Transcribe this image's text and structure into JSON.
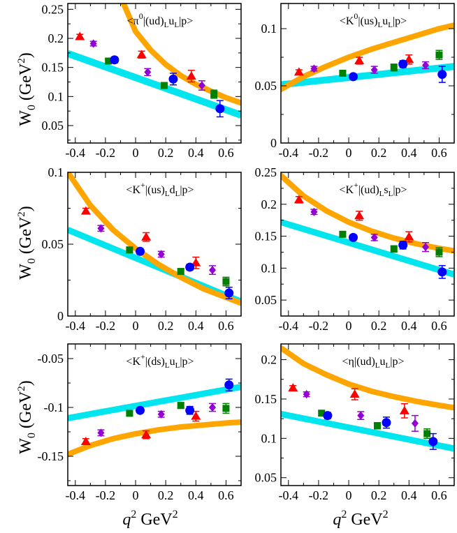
{
  "figure": {
    "ylabel_main": "W",
    "ylabel_sub": "0",
    "ylabel_unit": " (GeV",
    "ylabel_unit_sup": "2",
    "ylabel_close": ")",
    "xlabel_main": "q",
    "xlabel_sup": "2",
    "xlabel_unit": " GeV",
    "xlabel_unit_sup": "2"
  },
  "colors": {
    "triangle": "#ff0000",
    "diamond": "#9400d3",
    "square": "#008000",
    "circle": "#0000ff",
    "curve_orange": "#ffa500",
    "band_cyan": "#00e5ee"
  },
  "chart_data": [
    {
      "type": "scatter",
      "title": "<π⁰|(ud)LuL|p>",
      "title_parts": [
        "<π",
        "0",
        "|(ud)",
        "L",
        "u",
        "L",
        "|p>"
      ],
      "xlim": [
        -0.45,
        0.7
      ],
      "ylim": [
        0.02,
        0.26
      ],
      "xticks": [
        -0.4,
        -0.2,
        0,
        0.2,
        0.4,
        0.6
      ],
      "xtick_labels": [
        "-0.4",
        "-0.2",
        "0",
        "0.2",
        "0.4",
        "0.6"
      ],
      "yticks": [
        0.05,
        0.1,
        0.15,
        0.2,
        0.25
      ],
      "ytick_labels": [
        "0.05",
        "0.1",
        "0.15",
        "0.2",
        "0.25"
      ],
      "series": [
        {
          "name": "triangle",
          "marker": "triangle",
          "x": [
            -0.37,
            0.04,
            0.37
          ],
          "y": [
            0.203,
            0.172,
            0.135
          ],
          "err": [
            0.004,
            0.006,
            0.01
          ]
        },
        {
          "name": "diamond",
          "marker": "diamond",
          "x": [
            -0.28,
            0.08,
            0.44
          ],
          "y": [
            0.191,
            0.142,
            0.119
          ],
          "err": [
            0.004,
            0.006,
            0.008
          ]
        },
        {
          "name": "square",
          "marker": "square",
          "x": [
            -0.18,
            0.19,
            0.52
          ],
          "y": [
            0.161,
            0.119,
            0.104
          ],
          "err": [
            0.004,
            0.005,
            0.007
          ]
        },
        {
          "name": "circle",
          "marker": "circle",
          "x": [
            -0.14,
            0.25,
            0.56
          ],
          "y": [
            0.163,
            0.13,
            0.079
          ],
          "err": [
            0.005,
            0.01,
            0.014
          ]
        }
      ],
      "orange": {
        "x": [
          -0.08,
          0.0,
          0.1,
          0.2,
          0.3,
          0.4,
          0.5,
          0.6,
          0.7
        ],
        "y": [
          0.26,
          0.212,
          0.18,
          0.155,
          0.136,
          0.121,
          0.109,
          0.098,
          0.089
        ]
      },
      "cyan": {
        "x": [
          -0.45,
          0.7
        ],
        "y": [
          0.174,
          0.068
        ],
        "width": 0.012
      }
    },
    {
      "type": "scatter",
      "title": "<K⁰|(us)LuL|p>",
      "title_parts": [
        "<K",
        "0",
        "|(us)",
        "L",
        "u",
        "L",
        "|p>"
      ],
      "xlim": [
        -0.45,
        0.7
      ],
      "ylim": [
        0,
        0.122
      ],
      "xticks": [
        -0.4,
        -0.2,
        0,
        0.2,
        0.4,
        0.6
      ],
      "xtick_labels": [
        "-0.4",
        "-0.2",
        "0",
        "0.2",
        "0.4",
        "0.6"
      ],
      "yticks": [
        0,
        0.05,
        0.1
      ],
      "ytick_labels": [
        "0",
        "0.05",
        "0.1"
      ],
      "series": [
        {
          "name": "triangle",
          "marker": "triangle",
          "x": [
            -0.33,
            0.07,
            0.4
          ],
          "y": [
            0.062,
            0.072,
            0.073
          ],
          "err": [
            0.002,
            0.003,
            0.004
          ]
        },
        {
          "name": "diamond",
          "marker": "diamond",
          "x": [
            -0.23,
            0.17,
            0.51
          ],
          "y": [
            0.065,
            0.064,
            0.068
          ],
          "err": [
            0.002,
            0.003,
            0.003
          ]
        },
        {
          "name": "square",
          "marker": "square",
          "x": [
            -0.04,
            0.3,
            0.6
          ],
          "y": [
            0.061,
            0.066,
            0.077
          ],
          "err": [
            0.002,
            0.003,
            0.004
          ]
        },
        {
          "name": "circle",
          "marker": "circle",
          "x": [
            0.03,
            0.36,
            0.62
          ],
          "y": [
            0.058,
            0.069,
            0.06
          ],
          "err": [
            0.002,
            0.003,
            0.007
          ]
        }
      ],
      "orange": {
        "x": [
          -0.45,
          -0.3,
          -0.15,
          0.0,
          0.15,
          0.3,
          0.45,
          0.6,
          0.7
        ],
        "y": [
          0.047,
          0.058,
          0.067,
          0.075,
          0.082,
          0.088,
          0.094,
          0.1,
          0.103
        ]
      },
      "cyan": {
        "x": [
          -0.45,
          0.7
        ],
        "y": [
          0.051,
          0.067
        ],
        "width": 0.006
      }
    },
    {
      "type": "scatter",
      "title": "<K⁺|(us)LdL|p>",
      "title_parts": [
        "<K",
        "+",
        "|(us)",
        "L",
        "d",
        "L",
        "|p>"
      ],
      "xlim": [
        -0.45,
        0.7
      ],
      "ylim": [
        0,
        0.1
      ],
      "xticks": [
        -0.4,
        -0.2,
        0,
        0.2,
        0.4,
        0.6
      ],
      "xtick_labels": [
        "-0.4",
        "-0.2",
        "0",
        "0.2",
        "0.4",
        "0.6"
      ],
      "yticks": [
        0,
        0.05,
        0.1
      ],
      "ytick_labels": [
        "0",
        "0.05",
        "0.1"
      ],
      "series": [
        {
          "name": "triangle",
          "marker": "triangle",
          "x": [
            -0.33,
            0.07,
            0.4
          ],
          "y": [
            0.073,
            0.055,
            0.037
          ],
          "err": [
            0.002,
            0.003,
            0.004
          ]
        },
        {
          "name": "diamond",
          "marker": "diamond",
          "x": [
            -0.23,
            0.17,
            0.51
          ],
          "y": [
            0.061,
            0.043,
            0.032
          ],
          "err": [
            0.002,
            0.002,
            0.003
          ]
        },
        {
          "name": "square",
          "marker": "square",
          "x": [
            -0.04,
            0.3,
            0.6
          ],
          "y": [
            0.046,
            0.031,
            0.024
          ],
          "err": [
            0.002,
            0.002,
            0.003
          ]
        },
        {
          "name": "circle",
          "marker": "circle",
          "x": [
            0.03,
            0.36,
            0.62
          ],
          "y": [
            0.045,
            0.034,
            0.016
          ],
          "err": [
            0.002,
            0.002,
            0.004
          ]
        }
      ],
      "orange": {
        "x": [
          -0.45,
          -0.3,
          -0.15,
          0.0,
          0.15,
          0.3,
          0.45,
          0.6,
          0.7
        ],
        "y": [
          0.1,
          0.077,
          0.06,
          0.047,
          0.036,
          0.027,
          0.019,
          0.013,
          0.009
        ]
      },
      "cyan": {
        "x": [
          -0.45,
          0.7
        ],
        "y": [
          0.06,
          0.01
        ],
        "width": 0.004
      }
    },
    {
      "type": "scatter",
      "title": "<K⁺|(ud)LsL|p>",
      "title_parts": [
        "<K",
        "+",
        "|(ud)",
        "L",
        "s",
        "L",
        "|p>"
      ],
      "xlim": [
        -0.45,
        0.7
      ],
      "ylim": [
        0.025,
        0.25
      ],
      "xticks": [
        -0.4,
        -0.2,
        0,
        0.2,
        0.4,
        0.6
      ],
      "xtick_labels": [
        "-0.4",
        "-0.2",
        "0",
        "0.2",
        "0.4",
        "0.6"
      ],
      "yticks": [
        0.05,
        0.1,
        0.15,
        0.2,
        0.25
      ],
      "ytick_labels": [
        "0.05",
        "0.1",
        "0.15",
        "0.2",
        "0.25"
      ],
      "series": [
        {
          "name": "triangle",
          "marker": "triangle",
          "x": [
            -0.33,
            0.07,
            0.4
          ],
          "y": [
            0.207,
            0.182,
            0.149
          ],
          "err": [
            0.005,
            0.007,
            0.008
          ]
        },
        {
          "name": "diamond",
          "marker": "diamond",
          "x": [
            -0.23,
            0.17,
            0.51
          ],
          "y": [
            0.188,
            0.148,
            0.133
          ],
          "err": [
            0.004,
            0.005,
            0.007
          ]
        },
        {
          "name": "square",
          "marker": "square",
          "x": [
            -0.04,
            0.3,
            0.6
          ],
          "y": [
            0.153,
            0.13,
            0.125
          ],
          "err": [
            0.004,
            0.005,
            0.007
          ]
        },
        {
          "name": "circle",
          "marker": "circle",
          "x": [
            0.03,
            0.36,
            0.62
          ],
          "y": [
            0.148,
            0.136,
            0.094
          ],
          "err": [
            0.004,
            0.006,
            0.01
          ]
        }
      ],
      "orange": {
        "x": [
          -0.45,
          -0.3,
          -0.15,
          0.0,
          0.15,
          0.3,
          0.45,
          0.6,
          0.7
        ],
        "y": [
          0.245,
          0.213,
          0.19,
          0.172,
          0.158,
          0.147,
          0.138,
          0.131,
          0.127
        ]
      },
      "cyan": {
        "x": [
          -0.45,
          0.7
        ],
        "y": [
          0.172,
          0.09
        ],
        "width": 0.008
      }
    },
    {
      "type": "scatter",
      "title": "<K⁺|(ds)LuL|p>",
      "title_parts": [
        "<K",
        "+",
        "|(ds)",
        "L",
        "u",
        "L",
        "|p>"
      ],
      "xlim": [
        -0.45,
        0.7
      ],
      "ylim": [
        -0.18,
        -0.035
      ],
      "xticks": [
        -0.4,
        -0.2,
        0,
        0.2,
        0.4,
        0.6
      ],
      "xtick_labels": [
        "-0.4",
        "-0.2",
        "0",
        "0.2",
        "0.4",
        "0.6"
      ],
      "yticks": [
        -0.15,
        -0.1,
        -0.05
      ],
      "ytick_labels": [
        "-0.15",
        "-0.1",
        "-0.05"
      ],
      "series": [
        {
          "name": "triangle",
          "marker": "triangle",
          "x": [
            -0.33,
            0.07,
            0.4
          ],
          "y": [
            -0.135,
            -0.128,
            -0.109
          ],
          "err": [
            0.003,
            0.004,
            0.005
          ]
        },
        {
          "name": "diamond",
          "marker": "diamond",
          "x": [
            -0.23,
            0.17,
            0.51
          ],
          "y": [
            -0.126,
            -0.107,
            -0.1
          ],
          "err": [
            0.003,
            0.003,
            0.004
          ]
        },
        {
          "name": "square",
          "marker": "square",
          "x": [
            -0.04,
            0.3,
            0.6
          ],
          "y": [
            -0.106,
            -0.098,
            -0.101
          ],
          "err": [
            0.002,
            0.003,
            0.005
          ]
        },
        {
          "name": "circle",
          "marker": "circle",
          "x": [
            0.03,
            0.36,
            0.62
          ],
          "y": [
            -0.103,
            -0.103,
            -0.077
          ],
          "err": [
            0.002,
            0.004,
            0.006
          ]
        }
      ],
      "orange": {
        "x": [
          -0.45,
          -0.3,
          -0.15,
          0.0,
          0.15,
          0.3,
          0.45,
          0.6,
          0.7
        ],
        "y": [
          -0.148,
          -0.139,
          -0.132,
          -0.127,
          -0.123,
          -0.12,
          -0.118,
          -0.116,
          -0.115
        ]
      },
      "cyan": {
        "x": [
          -0.45,
          0.7
        ],
        "y": [
          -0.111,
          -0.079
        ],
        "width": 0.006
      }
    },
    {
      "type": "scatter",
      "title": "<η|(ud)LuL|p>",
      "title_parts": [
        "<η|(ud)",
        "",
        "",
        "L",
        "u",
        "L",
        "|p>"
      ],
      "xlim": [
        -0.45,
        0.7
      ],
      "ylim": [
        0.04,
        0.22
      ],
      "xticks": [
        -0.4,
        -0.2,
        0,
        0.2,
        0.4,
        0.6
      ],
      "xtick_labels": [
        "-0.4",
        "-0.2",
        "0",
        "0.2",
        "0.4",
        "0.6"
      ],
      "yticks": [
        0.05,
        0.1,
        0.15,
        0.2
      ],
      "ytick_labels": [
        "0.05",
        "0.1",
        "0.15",
        "0.2"
      ],
      "series": [
        {
          "name": "triangle",
          "marker": "triangle",
          "x": [
            -0.37,
            0.04,
            0.37
          ],
          "y": [
            0.164,
            0.156,
            0.135
          ],
          "err": [
            0.003,
            0.007,
            0.009
          ]
        },
        {
          "name": "diamond",
          "marker": "diamond",
          "x": [
            -0.28,
            0.08,
            0.44
          ],
          "y": [
            0.156,
            0.129,
            0.119
          ],
          "err": [
            0.003,
            0.005,
            0.01
          ]
        },
        {
          "name": "square",
          "marker": "square",
          "x": [
            -0.18,
            0.19,
            0.52
          ],
          "y": [
            0.132,
            0.116,
            0.106
          ],
          "err": [
            0.003,
            0.004,
            0.006
          ]
        },
        {
          "name": "circle",
          "marker": "circle",
          "x": [
            -0.14,
            0.25,
            0.56
          ],
          "y": [
            0.129,
            0.12,
            0.096
          ],
          "err": [
            0.004,
            0.007,
            0.01
          ]
        }
      ],
      "orange": {
        "x": [
          -0.45,
          -0.3,
          -0.15,
          0.0,
          0.15,
          0.3,
          0.45,
          0.6,
          0.7
        ],
        "y": [
          0.215,
          0.195,
          0.181,
          0.169,
          0.16,
          0.153,
          0.147,
          0.142,
          0.139
        ]
      },
      "cyan": {
        "x": [
          -0.45,
          0.7
        ],
        "y": [
          0.131,
          0.087
        ],
        "width": 0.007
      }
    }
  ]
}
